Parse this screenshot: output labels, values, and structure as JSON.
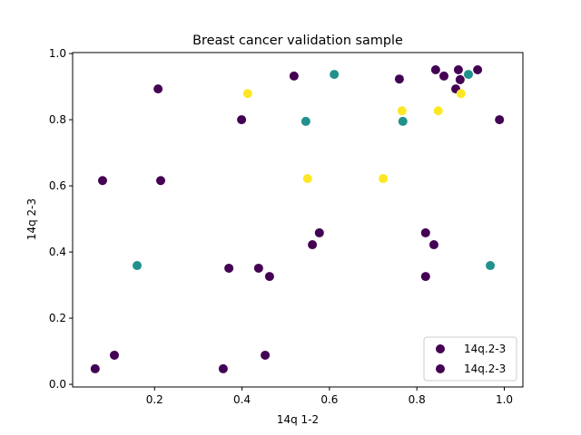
{
  "chart_data": {
    "type": "scatter",
    "title": "Breast cancer validation sample",
    "xlabel": "14q 1-2",
    "ylabel": "14q 2-3",
    "xlim": [
      0.0125,
      1.0426
    ],
    "ylim": [
      -0.008,
      1.003
    ],
    "xticks": [
      0.2,
      0.4,
      0.6,
      0.8,
      1.0
    ],
    "xtick_labels": [
      "0.2",
      "0.4",
      "0.6",
      "0.8",
      "1.0"
    ],
    "yticks": [
      0.0,
      0.2,
      0.4,
      0.6,
      0.8,
      1.0
    ],
    "ytick_labels": [
      "0.0",
      "0.2",
      "0.4",
      "0.6",
      "0.8",
      "1.0"
    ],
    "grid": false,
    "legend": {
      "placement": "lower-right",
      "entries": [
        {
          "label": "14q.2-3",
          "color": "#440154"
        },
        {
          "label": "14q.2-3",
          "color": "#440154"
        }
      ]
    },
    "colors": {
      "purple": "#440154",
      "teal": "#21918c",
      "yellow": "#fde725"
    },
    "series": [
      {
        "name": "purple",
        "color": "#440154",
        "points": [
          [
            0.064,
            0.047
          ],
          [
            0.108,
            0.088
          ],
          [
            0.357,
            0.047
          ],
          [
            0.453,
            0.088
          ],
          [
            0.37,
            0.351
          ],
          [
            0.438,
            0.351
          ],
          [
            0.463,
            0.326
          ],
          [
            0.081,
            0.616
          ],
          [
            0.214,
            0.616
          ],
          [
            0.208,
            0.893
          ],
          [
            0.399,
            0.8
          ],
          [
            0.519,
            0.932
          ],
          [
            0.577,
            0.458
          ],
          [
            0.561,
            0.422
          ],
          [
            0.82,
            0.458
          ],
          [
            0.839,
            0.422
          ],
          [
            0.82,
            0.326
          ],
          [
            0.76,
            0.923
          ],
          [
            0.989,
            0.8
          ],
          [
            0.843,
            0.951
          ],
          [
            0.862,
            0.932
          ],
          [
            0.895,
            0.951
          ],
          [
            0.899,
            0.921
          ],
          [
            0.889,
            0.893
          ],
          [
            0.939,
            0.951
          ]
        ]
      },
      {
        "name": "teal",
        "color": "#21918c",
        "points": [
          [
            0.16,
            0.359
          ],
          [
            0.546,
            0.795
          ],
          [
            0.611,
            0.937
          ],
          [
            0.768,
            0.795
          ],
          [
            0.918,
            0.937
          ],
          [
            0.968,
            0.359
          ]
        ]
      },
      {
        "name": "yellow",
        "color": "#fde725",
        "points": [
          [
            0.413,
            0.879
          ],
          [
            0.55,
            0.622
          ],
          [
            0.723,
            0.622
          ],
          [
            0.766,
            0.827
          ],
          [
            0.849,
            0.827
          ],
          [
            0.901,
            0.879
          ]
        ]
      }
    ]
  }
}
